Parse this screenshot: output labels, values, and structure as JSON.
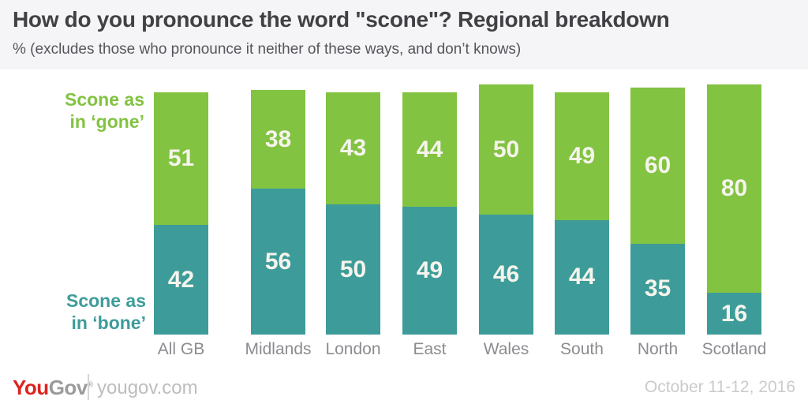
{
  "header": {
    "title": "How do you pronounce the word \"scone\"? Regional breakdown",
    "subtitle": "% (excludes those who pronounce it neither of these ways, and don’t knows)"
  },
  "legend": {
    "gone": {
      "line1": "Scone as",
      "line2": "in ‘gone’"
    },
    "bone": {
      "line1": "Scone as",
      "line2": "in ‘bone’"
    }
  },
  "chart_data": {
    "type": "bar",
    "stacked": true,
    "orientation": "vertical",
    "value_unit": "%",
    "categories": [
      "All GB",
      "Midlands",
      "London",
      "East",
      "Wales",
      "South",
      "North",
      "Scotland"
    ],
    "series": [
      {
        "name": "Scone as in ‘gone’",
        "position": "top",
        "color": "#82c341",
        "values": [
          51,
          38,
          43,
          44,
          50,
          49,
          60,
          80
        ]
      },
      {
        "name": "Scone as in ‘bone’",
        "position": "bottom",
        "color": "#3d9c99",
        "values": [
          42,
          56,
          50,
          49,
          46,
          44,
          35,
          16
        ]
      }
    ],
    "value_labels_shown": true,
    "axis_shown": false,
    "grid": false,
    "legend_position": "left"
  },
  "colors": {
    "header_band": "#f5f5f7",
    "gone_green": "#82c341",
    "bone_teal": "#3d9c99",
    "value_text": "#f5f4ec",
    "category_text": "#8c8c90",
    "title_text": "#414145"
  },
  "footer": {
    "logo_you": "You",
    "logo_gov": "Gov",
    "logo_reg": "®",
    "site": "yougov.com",
    "date": "October 11-12, 2016"
  }
}
